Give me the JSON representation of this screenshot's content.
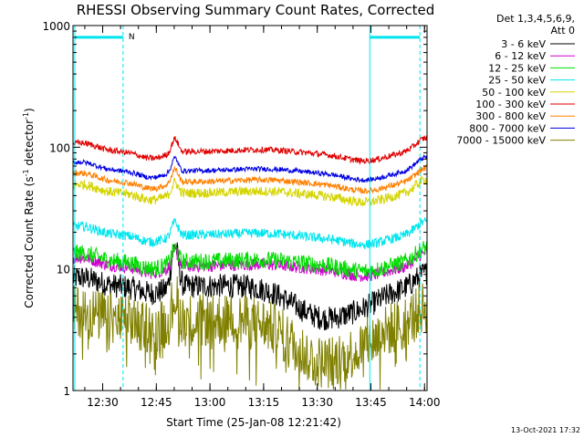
{
  "chart_data": {
    "type": "line",
    "title": "RHESSI Observing Summary Count Rates, Corrected",
    "xlabel": "Start Time (25-Jan-08 12:21:42)",
    "ylabel_main": "Corrected Count Rate (s",
    "ylabel_sup1": "-1",
    "ylabel_mid": " detector",
    "ylabel_sup2": "-1",
    "ylabel_end": ")",
    "yscale": "log",
    "ylim": [
      1,
      1000
    ],
    "xlim_minutes": [
      0,
      99
    ],
    "x_unit": "minutes after 12:21:42",
    "x_tick_labels": [
      "12:30",
      "12:45",
      "13:00",
      "13:15",
      "13:30",
      "13:45",
      "14:00"
    ],
    "x_tick_minutes": [
      8.3,
      23.3,
      38.3,
      53.3,
      68.3,
      83.3,
      98.3
    ],
    "y_tick_labels": [
      "1",
      "10",
      "100",
      "1000"
    ],
    "y_tick_values": [
      1,
      10,
      100,
      1000
    ],
    "legend_header": [
      "Det 1,3,4,5,6,9,",
      "Att 0"
    ],
    "legend_position": "right",
    "timestamp": "13-Oct-2021 17:32",
    "night_label": "N",
    "night_bars_minutes": [
      [
        0.5,
        14
      ],
      [
        83,
        97
      ]
    ],
    "night_bar_level": 800,
    "night_bar_color": "#00e5ee",
    "solid_vline_minutes": [
      0.5,
      83
    ],
    "dashed_vline_minutes": [
      14,
      97
    ],
    "series": [
      {
        "name": "3 - 6 keV",
        "color": "#000000",
        "base": 7.2,
        "noise": 0.1,
        "peak": 2.2,
        "dip": 0.55
      },
      {
        "name": "6 - 12 keV",
        "color": "#d000d0",
        "base": 10.5,
        "noise": 0.05,
        "peak": 1.35,
        "dip": 0.85
      },
      {
        "name": "12 - 25 keV",
        "color": "#00dd00",
        "base": 11.5,
        "noise": 0.07,
        "peak": 1.3,
        "dip": 0.85
      },
      {
        "name": "25 - 50 keV",
        "color": "#00e5ee",
        "base": 19,
        "noise": 0.04,
        "peak": 1.3,
        "dip": 0.85
      },
      {
        "name": "50 - 100 keV",
        "color": "#d4d400",
        "base": 42,
        "noise": 0.04,
        "peak": 1.25,
        "dip": 0.88
      },
      {
        "name": "100 - 300 keV",
        "color": "#e00000",
        "base": 92,
        "noise": 0.025,
        "peak": 1.3,
        "dip": 0.88
      },
      {
        "name": "300 - 800 keV",
        "color": "#ff8000",
        "base": 52,
        "noise": 0.025,
        "peak": 1.3,
        "dip": 0.88
      },
      {
        "name": "800 - 7000 keV",
        "color": "#0000e0",
        "base": 64,
        "noise": 0.02,
        "peak": 1.3,
        "dip": 0.88
      },
      {
        "name": "7000 - 15000 keV",
        "color": "#808000",
        "base": 3.8,
        "noise": 0.22,
        "peak": 1.6,
        "dip": 0.45
      }
    ]
  }
}
